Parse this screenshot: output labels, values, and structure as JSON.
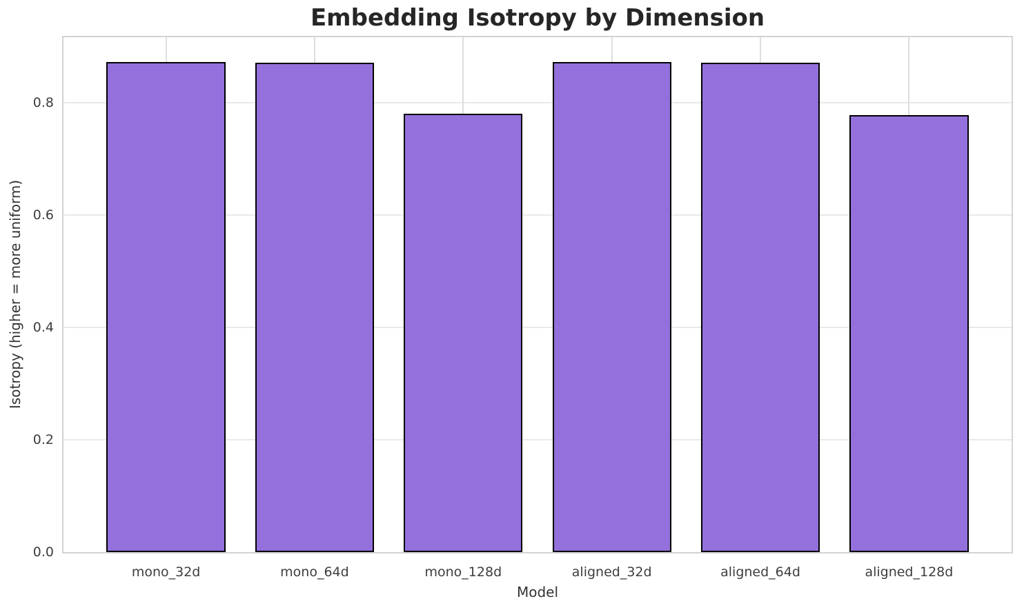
{
  "chart_data": {
    "type": "bar",
    "title": "Embedding Isotropy by Dimension",
    "xlabel": "Model",
    "ylabel": "Isotropy (higher = more uniform)",
    "categories": [
      "mono_32d",
      "mono_64d",
      "mono_128d",
      "aligned_32d",
      "aligned_64d",
      "aligned_128d"
    ],
    "values": [
      0.873,
      0.872,
      0.781,
      0.873,
      0.872,
      0.778
    ],
    "ylim": [
      0,
      0.917
    ],
    "yticks": [
      0.0,
      0.2,
      0.4,
      0.6,
      0.8
    ],
    "ytick_labels": [
      "0.0",
      "0.2",
      "0.4",
      "0.6",
      "0.8"
    ],
    "grid": true,
    "legend": "none",
    "bar_color": "#9370DB",
    "bar_edge_color": "#000000",
    "grid_color": "#e9e9e9",
    "spine_color": "#d3d3d3",
    "background_color": "#ffffff",
    "title_color": "#262626",
    "tick_color": "#3d3d3d"
  }
}
